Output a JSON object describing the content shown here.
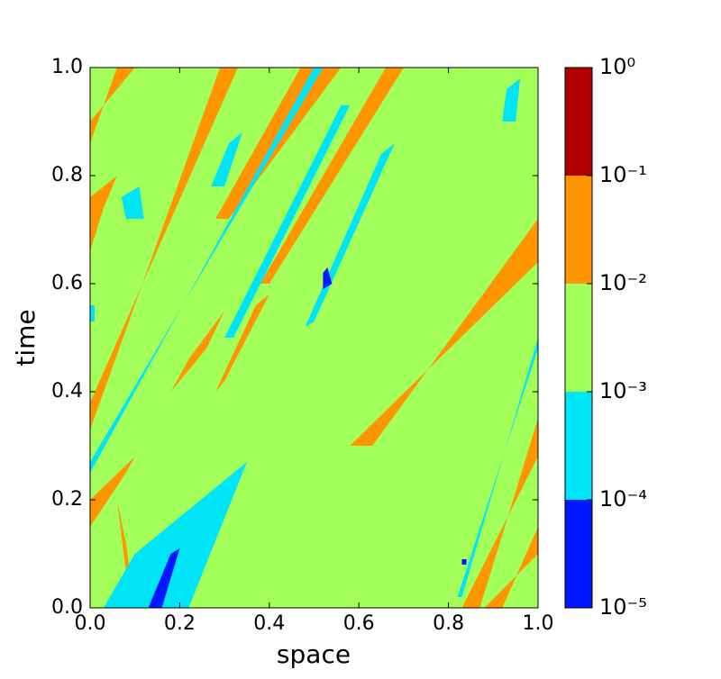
{
  "chart_data": {
    "type": "contour",
    "xlabel": "space",
    "ylabel": "time",
    "xlim": [
      0,
      1
    ],
    "ylim": [
      0,
      1
    ],
    "xticks": [
      {
        "value": 0,
        "label": "0.0"
      },
      {
        "value": 0.2,
        "label": "0.2"
      },
      {
        "value": 0.4,
        "label": "0.4"
      },
      {
        "value": 0.6,
        "label": "0.6"
      },
      {
        "value": 0.8,
        "label": "0.8"
      },
      {
        "value": 1,
        "label": "1.0"
      }
    ],
    "yticks": [
      {
        "value": 0,
        "label": "0.0"
      },
      {
        "value": 0.2,
        "label": "0.2"
      },
      {
        "value": 0.4,
        "label": "0.4"
      },
      {
        "value": 0.6,
        "label": "0.6"
      },
      {
        "value": 0.8,
        "label": "0.8"
      },
      {
        "value": 1,
        "label": "1.0"
      }
    ],
    "colorbar": {
      "scale": "log",
      "lim": [
        1e-05,
        1
      ],
      "ticks": [
        {
          "value": 1e-05,
          "label": "10⁻⁵"
        },
        {
          "value": 0.0001,
          "label": "10⁻⁴"
        },
        {
          "value": 0.001,
          "label": "10⁻³"
        },
        {
          "value": 0.01,
          "label": "10⁻²"
        },
        {
          "value": 0.1,
          "label": "10⁻¹"
        },
        {
          "value": 1,
          "label": "10⁰"
        }
      ],
      "colors": [
        "#0018ff",
        "#00e4f8",
        "#a3ff5a",
        "#ff9500",
        "#b20000"
      ]
    }
  }
}
